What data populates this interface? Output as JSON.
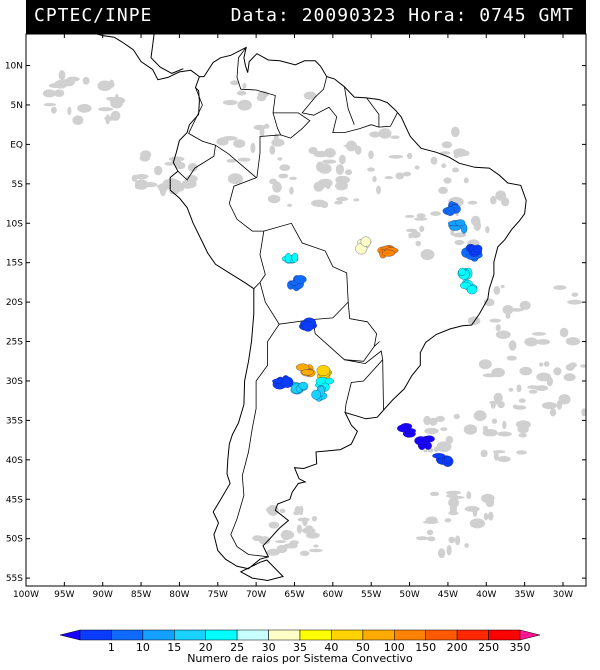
{
  "header": {
    "source": "CPTEC/INPE",
    "date_label": "Data:",
    "date": "20090323",
    "time_label": "Hora:",
    "time": "0745",
    "tz": "GMT"
  },
  "axes": {
    "lat_labels": [
      "10N",
      "5N",
      "EQ",
      "5S",
      "10S",
      "15S",
      "20S",
      "25S",
      "30S",
      "35S",
      "40S",
      "45S",
      "50S",
      "55S"
    ],
    "lat_values": [
      10,
      5,
      0,
      -5,
      -10,
      -15,
      -20,
      -25,
      -30,
      -35,
      -40,
      -45,
      -50,
      -55
    ],
    "lon_labels": [
      "100W",
      "95W",
      "90W",
      "85W",
      "80W",
      "75W",
      "70W",
      "65W",
      "60W",
      "55W",
      "50W",
      "45W",
      "40W",
      "35W",
      "30W"
    ],
    "lon_values": [
      -100,
      -95,
      -90,
      -85,
      -80,
      -75,
      -70,
      -65,
      -60,
      -55,
      -50,
      -45,
      -40,
      -35,
      -30
    ],
    "lat_range": [
      -56,
      14
    ],
    "lon_range": [
      -100,
      -27
    ]
  },
  "legend": {
    "ticks": [
      "1",
      "10",
      "15",
      "20",
      "25",
      "30",
      "35",
      "40",
      "50",
      "100",
      "150",
      "200",
      "250",
      "350"
    ],
    "colors": [
      "#1a00ff",
      "#0a3cff",
      "#0f6bff",
      "#14a0ff",
      "#19d2ff",
      "#00ffff",
      "#c8ffff",
      "#ffffc8",
      "#ffff00",
      "#ffd200",
      "#ffaa00",
      "#ff8200",
      "#ff5a00",
      "#ff2800",
      "#ff0000",
      "#ff1493"
    ],
    "caption": "Numero de raios por Sistema Convectivo"
  },
  "clusters": [
    {
      "lon": -43.5,
      "lat": -10.3,
      "level": 3
    },
    {
      "lon": -44.5,
      "lat": -8.0,
      "level": 2
    },
    {
      "lon": -42.0,
      "lat": -14.2,
      "level": 2
    },
    {
      "lon": -41.5,
      "lat": -13.6,
      "level": 1
    },
    {
      "lon": -42.7,
      "lat": -16.5,
      "level": 5
    },
    {
      "lon": -42.5,
      "lat": -18.0,
      "level": 5
    },
    {
      "lon": -53.0,
      "lat": -13.5,
      "level": 11
    },
    {
      "lon": -55.8,
      "lat": -12.8,
      "level": 7
    },
    {
      "lon": -64.9,
      "lat": -17.6,
      "level": 2
    },
    {
      "lon": -65.5,
      "lat": -14.8,
      "level": 5
    },
    {
      "lon": -63.5,
      "lat": -23.0,
      "level": 1
    },
    {
      "lon": -63.5,
      "lat": -28.6,
      "level": 10
    },
    {
      "lon": -61.2,
      "lat": -29.1,
      "level": 9
    },
    {
      "lon": -61.0,
      "lat": -30.5,
      "level": 5
    },
    {
      "lon": -64.5,
      "lat": -30.9,
      "level": 4
    },
    {
      "lon": -62.0,
      "lat": -31.5,
      "level": 4
    },
    {
      "lon": -66.5,
      "lat": -30.0,
      "level": 1
    },
    {
      "lon": -50.2,
      "lat": -36.2,
      "level": 0
    },
    {
      "lon": -48.0,
      "lat": -37.8,
      "level": 0
    },
    {
      "lon": -45.6,
      "lat": -39.8,
      "level": 1
    }
  ]
}
